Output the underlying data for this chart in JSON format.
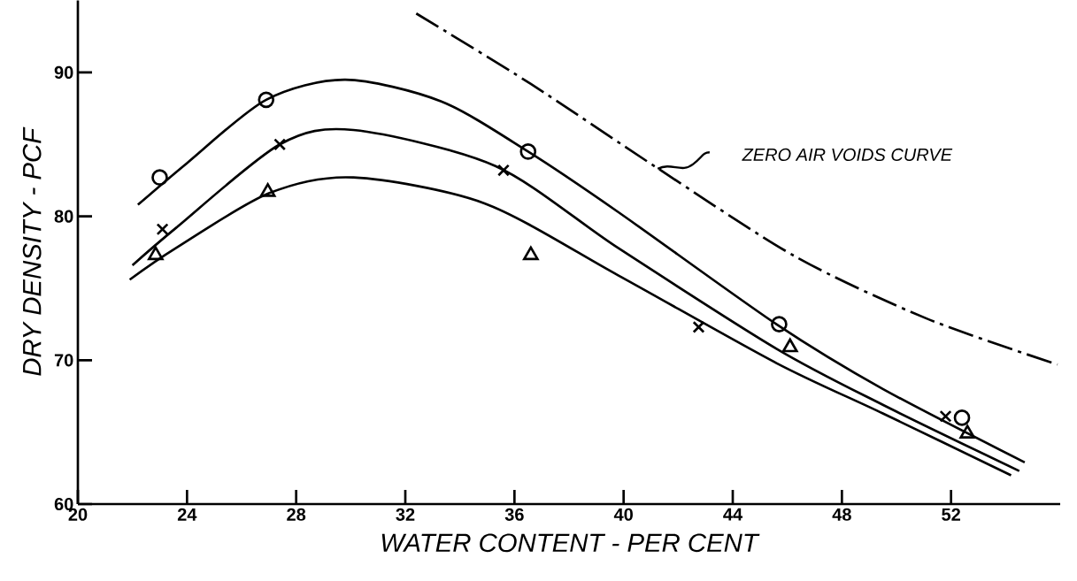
{
  "chart_data": {
    "type": "scatter",
    "xlabel": "WATER CONTENT - PER CENT",
    "ylabel": "DRY DENSITY - PCF",
    "xlim": [
      20,
      56
    ],
    "ylim": [
      60,
      95
    ],
    "xticks": [
      20,
      24,
      28,
      32,
      36,
      40,
      44,
      48,
      52
    ],
    "yticks": [
      60,
      70,
      80,
      90
    ],
    "annotations": [
      "ZERO AIR VOIDS CURVE"
    ],
    "series": [
      {
        "type": "scatter",
        "marker": "circle",
        "color": "#000000",
        "x": [
          23.0,
          26.9,
          36.5,
          45.7,
          52.4
        ],
        "values": [
          82.7,
          88.1,
          84.5,
          72.5,
          66.0
        ]
      },
      {
        "type": "scatter",
        "marker": "cross",
        "color": "#000000",
        "x": [
          23.1,
          27.4,
          35.6,
          42.75,
          51.8
        ],
        "values": [
          79.1,
          85.0,
          83.2,
          72.3,
          66.1
        ]
      },
      {
        "type": "scatter",
        "marker": "triangle",
        "color": "#000000",
        "x": [
          22.85,
          26.96,
          36.6,
          46.1,
          52.6
        ],
        "values": [
          77.3,
          81.7,
          77.3,
          70.9,
          64.9
        ]
      },
      {
        "type": "line",
        "marker": "none",
        "line_style": "solid",
        "color": "#000000",
        "x": [
          22.2,
          24.0,
          26.9,
          29.8,
          33.3,
          36.5,
          39.8,
          45.6,
          49.5,
          54.7
        ],
        "values": [
          80.8,
          83.7,
          88.1,
          89.5,
          88.0,
          84.5,
          80.3,
          72.5,
          68.0,
          62.9
        ]
      },
      {
        "type": "line",
        "marker": "none",
        "line_style": "solid",
        "color": "#000000",
        "x": [
          22.0,
          23.6,
          27.4,
          30.1,
          35.3,
          39.8,
          45.6,
          49.5,
          54.5
        ],
        "values": [
          76.6,
          79.2,
          85.0,
          86.0,
          83.5,
          77.8,
          70.8,
          66.9,
          62.3
        ]
      },
      {
        "type": "line",
        "marker": "none",
        "line_style": "solid",
        "color": "#000000",
        "x": [
          21.9,
          23.6,
          27.0,
          30.1,
          34.9,
          39.8,
          45.6,
          49.5,
          54.2
        ],
        "values": [
          75.6,
          77.8,
          81.6,
          82.7,
          80.9,
          75.9,
          69.8,
          66.3,
          62.0
        ]
      },
      {
        "type": "line",
        "marker": "none",
        "line_style": "dashdot",
        "color": "#000000",
        "x": [
          32.4,
          36.6,
          41.2,
          46.3,
          51.1,
          55.9
        ],
        "values": [
          94.1,
          89.2,
          83.4,
          77.2,
          72.9,
          69.7
        ]
      }
    ]
  }
}
